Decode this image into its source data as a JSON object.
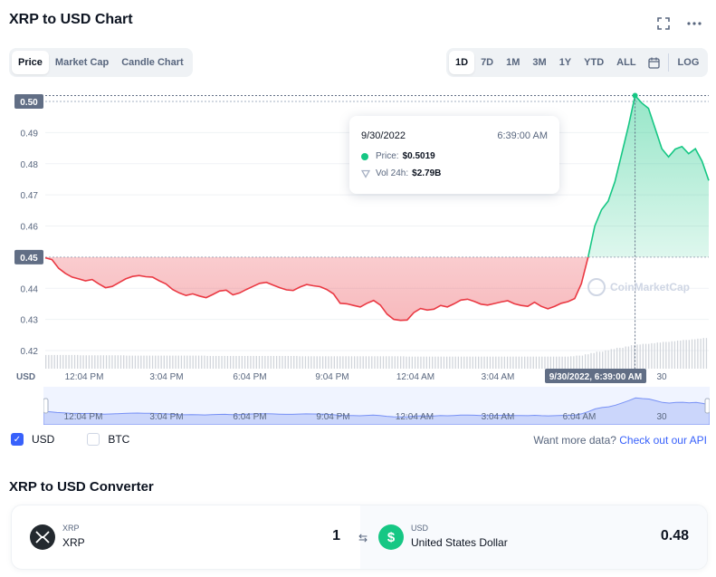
{
  "header": {
    "title": "XRP to USD Chart"
  },
  "view_tabs": [
    {
      "label": "Price",
      "active": true
    },
    {
      "label": "Market Cap",
      "active": false
    },
    {
      "label": "Candle Chart",
      "active": false
    }
  ],
  "range_tabs": [
    {
      "label": "1D",
      "active": true
    },
    {
      "label": "7D",
      "active": false
    },
    {
      "label": "1M",
      "active": false
    },
    {
      "label": "3M",
      "active": false
    },
    {
      "label": "1Y",
      "active": false
    },
    {
      "label": "YTD",
      "active": false
    },
    {
      "label": "ALL",
      "active": false
    }
  ],
  "log_label": "LOG",
  "tooltip": {
    "date": "9/30/2022",
    "time": "6:39:00 AM",
    "price_label": "Price:",
    "price_value": "$0.5019",
    "vol_label": "Vol 24h:",
    "vol_value": "$2.79B"
  },
  "watermark": "CoinMarketCap",
  "chart_data": {
    "type": "area",
    "currency_label": "USD",
    "y_ticks": [
      "0.42",
      "0.43",
      "0.44",
      "0.45",
      "0.46",
      "0.47",
      "0.48",
      "0.49",
      "0.50"
    ],
    "highlighted_y": [
      "0.45",
      "0.50"
    ],
    "x_ticks": [
      "12:04 PM",
      "3:04 PM",
      "6:04 PM",
      "9:04 PM",
      "12:04 AM",
      "3:04 AM",
      "30"
    ],
    "crosshair_label": "9/30/2022, 6:39:00 AM",
    "reference_price": 0.45,
    "ylim": [
      0.415,
      0.505
    ],
    "series": [
      {
        "x": [
          0,
          1,
          2,
          3,
          4,
          5,
          6,
          7,
          8,
          9,
          10,
          11,
          12,
          13,
          14,
          15,
          16,
          17,
          18,
          19,
          20,
          21,
          22,
          23,
          24,
          25,
          26,
          27,
          28,
          29,
          30,
          31,
          32,
          33,
          34,
          35,
          36,
          37,
          38,
          39,
          40,
          41,
          42,
          43,
          44,
          45,
          46,
          47,
          48,
          49,
          50,
          51,
          52,
          53,
          54,
          55,
          56,
          57,
          58,
          59,
          60,
          61,
          62,
          63,
          64,
          65,
          66,
          67,
          68,
          69,
          70,
          71,
          72,
          73,
          74,
          75,
          76,
          77,
          78,
          79,
          80,
          81,
          82,
          83,
          84,
          85,
          86,
          87,
          88,
          89,
          90,
          91,
          92,
          93,
          94,
          95,
          96,
          97,
          98,
          99
        ],
        "values": [
          0.4498,
          0.4492,
          0.4464,
          0.4448,
          0.4436,
          0.443,
          0.4424,
          0.4428,
          0.4414,
          0.4402,
          0.4406,
          0.4418,
          0.443,
          0.4438,
          0.4441,
          0.4437,
          0.4436,
          0.4424,
          0.4414,
          0.4396,
          0.4385,
          0.4377,
          0.4382,
          0.4375,
          0.437,
          0.438,
          0.4391,
          0.4394,
          0.4379,
          0.4385,
          0.4396,
          0.4406,
          0.4416,
          0.4419,
          0.441,
          0.4402,
          0.4395,
          0.4393,
          0.4404,
          0.4412,
          0.4408,
          0.4405,
          0.4396,
          0.4382,
          0.4352,
          0.435,
          0.4345,
          0.434,
          0.4352,
          0.4361,
          0.4346,
          0.4317,
          0.43,
          0.4297,
          0.4298,
          0.4322,
          0.4335,
          0.433,
          0.4333,
          0.4345,
          0.434,
          0.435,
          0.4362,
          0.4365,
          0.4358,
          0.4349,
          0.4346,
          0.4351,
          0.4356,
          0.436,
          0.435,
          0.4345,
          0.4342,
          0.4355,
          0.4342,
          0.4334,
          0.4342,
          0.4352,
          0.4357,
          0.4367,
          0.4415,
          0.45,
          0.46,
          0.4652,
          0.468,
          0.4742,
          0.483,
          0.492,
          0.5019,
          0.4995,
          0.4978,
          0.4913,
          0.4848,
          0.4822,
          0.4847,
          0.4855,
          0.4832,
          0.4848,
          0.4808,
          0.4746
        ],
        "color_up": "#16c784",
        "color_down": "#ea3943"
      }
    ],
    "volume": [
      0.42,
      0.42,
      0.42,
      0.42,
      0.42,
      0.41,
      0.41,
      0.41,
      0.41,
      0.41,
      0.41,
      0.41,
      0.4,
      0.4,
      0.4,
      0.4,
      0.4,
      0.4,
      0.4,
      0.4,
      0.4,
      0.4,
      0.4,
      0.4,
      0.39,
      0.39,
      0.39,
      0.39,
      0.39,
      0.39,
      0.39,
      0.39,
      0.39,
      0.39,
      0.39,
      0.39,
      0.39,
      0.39,
      0.38,
      0.38,
      0.38,
      0.38,
      0.38,
      0.38,
      0.38,
      0.38,
      0.38,
      0.38,
      0.38,
      0.38,
      0.38,
      0.38,
      0.38,
      0.38,
      0.37,
      0.37,
      0.37,
      0.37,
      0.37,
      0.37,
      0.37,
      0.37,
      0.37,
      0.37,
      0.37,
      0.37,
      0.37,
      0.37,
      0.37,
      0.37,
      0.37,
      0.37,
      0.37,
      0.37,
      0.37,
      0.37,
      0.37,
      0.37,
      0.37,
      0.38,
      0.4,
      0.44,
      0.48,
      0.52,
      0.56,
      0.6,
      0.64,
      0.68,
      0.72,
      0.74,
      0.76,
      0.78,
      0.8,
      0.82,
      0.84,
      0.86,
      0.88,
      0.9,
      0.92,
      0.94
    ]
  },
  "navigator": {
    "labels": [
      "12:04 PM",
      "3:04 PM",
      "6:04 PM",
      "9:04 PM",
      "12:04 AM",
      "3:04 AM",
      "6:04 AM",
      "30"
    ]
  },
  "legend": {
    "usd_label": "USD",
    "usd_checked": true,
    "btc_label": "BTC",
    "btc_checked": false,
    "more_text": "Want more data?",
    "more_link": "Check out our API"
  },
  "converter": {
    "title": "XRP to USD Converter",
    "from_code": "XRP",
    "from_name": "XRP",
    "from_amount": "1",
    "to_code": "USD",
    "to_name": "United States Dollar",
    "to_amount": "0.48"
  },
  "colors": {
    "accent": "#3861fb",
    "up": "#16c784",
    "down": "#ea3943"
  }
}
